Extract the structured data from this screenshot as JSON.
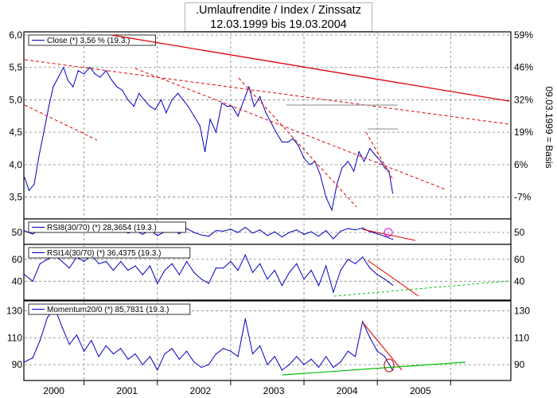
{
  "title": {
    "line1": ".Umlaufrendite / Index / Zinssatz",
    "line2": "12.03.1999 bis 19.03.2004"
  },
  "right_axis_label": "09.03.1999 = Basis",
  "colors": {
    "series": "#0000c0",
    "trend_red": "#e00000",
    "trend_green": "#00c000",
    "gridline": "#808080",
    "marker_magenta": "#e000e0"
  },
  "chart_data": [
    {
      "type": "line",
      "panel": "price",
      "legend": "Close (*) 3,56 % (19.3.)",
      "x_ticks": [
        "2000",
        "2001",
        "2002",
        "2003",
        "2004",
        "2005"
      ],
      "x_range": [
        1999.19,
        2005.8
      ],
      "yticks_left": [
        "6,0",
        "5,5",
        "5,0",
        "4,5",
        "4,0",
        "3,5"
      ],
      "yticks_left_values": [
        6.0,
        5.5,
        5.0,
        4.5,
        4.0,
        3.5
      ],
      "yticks_right": [
        "59%",
        "46%",
        "32%",
        "19%",
        "6%",
        "-7%"
      ],
      "ylim": [
        3.2,
        6.0
      ],
      "series": [
        {
          "x": [
            1999.19,
            1999.25,
            1999.32,
            1999.38,
            1999.45,
            1999.52,
            1999.58,
            1999.65,
            1999.72,
            1999.78,
            1999.85,
            1999.92,
            2000.0,
            2000.08,
            2000.15,
            2000.22,
            2000.3,
            2000.38,
            2000.45,
            2000.52,
            2000.6,
            2000.68,
            2000.75,
            2000.82,
            2000.9,
            2000.97,
            2001.05,
            2001.12,
            2001.2,
            2001.28,
            2001.35,
            2001.42,
            2001.5,
            2001.58,
            2001.65,
            2001.72,
            2001.8,
            2001.88,
            2001.95,
            2002.02,
            2002.1,
            2002.18,
            2002.25,
            2002.32,
            2002.4,
            2002.48,
            2002.55,
            2002.62,
            2002.7,
            2002.78,
            2002.85,
            2002.92,
            2003.0,
            2003.08,
            2003.15,
            2003.22,
            2003.3,
            2003.38,
            2003.45,
            2003.52,
            2003.6,
            2003.68,
            2003.75,
            2003.82,
            2003.9,
            2003.97,
            2004.05,
            2004.1,
            2004.16,
            2004.21
          ],
          "y": [
            3.8,
            3.6,
            3.7,
            4.1,
            4.5,
            4.9,
            5.2,
            5.35,
            5.5,
            5.3,
            5.2,
            5.45,
            5.4,
            5.5,
            5.4,
            5.35,
            5.45,
            5.3,
            5.2,
            5.15,
            5.0,
            4.9,
            5.1,
            5.0,
            4.9,
            4.85,
            5.0,
            4.8,
            5.0,
            5.1,
            5.0,
            4.9,
            4.75,
            4.6,
            4.2,
            4.7,
            4.5,
            4.95,
            4.9,
            4.9,
            4.75,
            5.0,
            5.2,
            4.9,
            5.05,
            4.8,
            4.65,
            4.5,
            4.35,
            4.35,
            4.4,
            4.3,
            4.1,
            4.0,
            4.05,
            3.85,
            3.5,
            3.3,
            3.7,
            3.95,
            4.05,
            3.9,
            4.2,
            4.05,
            4.25,
            4.15,
            4.05,
            3.95,
            3.9,
            3.56
          ]
        }
      ]
    },
    {
      "type": "line",
      "panel": "rsi8",
      "legend": "RSI8(30/70) (*) 28,3654 (19.3.)",
      "yticks_left": [
        "50"
      ],
      "yticks_right": [
        "50"
      ],
      "ylim": [
        20,
        80
      ],
      "series": [
        {
          "x": [
            1999.19,
            1999.3,
            1999.4,
            1999.5,
            1999.6,
            1999.7,
            1999.8,
            1999.9,
            2000.0,
            2000.1,
            2000.2,
            2000.3,
            2000.4,
            2000.5,
            2000.6,
            2000.7,
            2000.8,
            2000.9,
            2001.0,
            2001.1,
            2001.2,
            2001.3,
            2001.4,
            2001.5,
            2001.6,
            2001.7,
            2001.8,
            2001.9,
            2002.0,
            2002.1,
            2002.2,
            2002.3,
            2002.4,
            2002.5,
            2002.6,
            2002.7,
            2002.8,
            2002.9,
            2003.0,
            2003.1,
            2003.2,
            2003.3,
            2003.4,
            2003.5,
            2003.6,
            2003.7,
            2003.8,
            2003.9,
            2004.0,
            2004.1,
            2004.21
          ],
          "y": [
            55,
            45,
            62,
            58,
            68,
            60,
            52,
            64,
            58,
            66,
            55,
            60,
            50,
            62,
            48,
            56,
            44,
            58,
            40,
            52,
            60,
            46,
            62,
            50,
            42,
            38,
            56,
            54,
            60,
            50,
            66,
            48,
            58,
            40,
            52,
            36,
            50,
            58,
            44,
            52,
            38,
            56,
            30,
            54,
            62,
            58,
            64,
            52,
            46,
            38,
            28.37
          ]
        }
      ]
    },
    {
      "type": "line",
      "panel": "rsi14",
      "legend": "RSI14(30/70) (*) 36,4375 (19.3.)",
      "yticks_left": [
        "60",
        "40"
      ],
      "yticks_left_values": [
        60,
        40
      ],
      "yticks_right": [
        "60",
        "40"
      ],
      "ylim": [
        25,
        70
      ],
      "series": [
        {
          "x": [
            1999.19,
            1999.3,
            1999.4,
            1999.5,
            1999.6,
            1999.7,
            1999.8,
            1999.9,
            2000.0,
            2000.1,
            2000.2,
            2000.3,
            2000.4,
            2000.5,
            2000.6,
            2000.7,
            2000.8,
            2000.9,
            2001.0,
            2001.1,
            2001.2,
            2001.3,
            2001.4,
            2001.5,
            2001.6,
            2001.7,
            2001.8,
            2001.9,
            2002.0,
            2002.1,
            2002.2,
            2002.3,
            2002.4,
            2002.5,
            2002.6,
            2002.7,
            2002.8,
            2002.9,
            2003.0,
            2003.1,
            2003.2,
            2003.3,
            2003.4,
            2003.5,
            2003.6,
            2003.7,
            2003.8,
            2003.9,
            2004.0,
            2004.1,
            2004.21
          ],
          "y": [
            46,
            40,
            56,
            60,
            64,
            58,
            52,
            62,
            58,
            64,
            56,
            58,
            50,
            58,
            50,
            54,
            46,
            54,
            38,
            50,
            56,
            46,
            58,
            48,
            42,
            38,
            52,
            52,
            58,
            50,
            64,
            48,
            56,
            42,
            50,
            36,
            48,
            56,
            42,
            50,
            36,
            54,
            30,
            50,
            60,
            56,
            62,
            52,
            46,
            42,
            36.44
          ]
        }
      ]
    },
    {
      "type": "line",
      "panel": "momentum",
      "legend": "Momentum20/0 (*) 85,7831 (19.3.)",
      "yticks_left": [
        "130",
        "110",
        "90"
      ],
      "yticks_left_values": [
        130,
        110,
        90
      ],
      "yticks_right": [
        "130",
        "110",
        "90"
      ],
      "ylim": [
        80,
        135
      ],
      "series": [
        {
          "x": [
            1999.19,
            1999.3,
            1999.4,
            1999.5,
            1999.6,
            1999.7,
            1999.8,
            1999.9,
            2000.0,
            2000.1,
            2000.2,
            2000.3,
            2000.4,
            2000.5,
            2000.6,
            2000.7,
            2000.8,
            2000.9,
            2001.0,
            2001.1,
            2001.2,
            2001.3,
            2001.4,
            2001.5,
            2001.6,
            2001.7,
            2001.8,
            2001.9,
            2002.0,
            2002.1,
            2002.2,
            2002.3,
            2002.4,
            2002.5,
            2002.6,
            2002.7,
            2002.8,
            2002.9,
            2003.0,
            2003.1,
            2003.2,
            2003.3,
            2003.4,
            2003.5,
            2003.6,
            2003.7,
            2003.8,
            2003.9,
            2004.0,
            2004.1,
            2004.21
          ],
          "y": [
            92,
            95,
            108,
            125,
            132,
            118,
            105,
            112,
            100,
            108,
            96,
            104,
            98,
            102,
            94,
            98,
            90,
            96,
            86,
            98,
            102,
            94,
            100,
            92,
            88,
            90,
            98,
            102,
            100,
            96,
            124,
            98,
            104,
            90,
            96,
            86,
            90,
            96,
            90,
            94,
            88,
            96,
            88,
            92,
            100,
            96,
            122,
            110,
            100,
            96,
            85.78
          ]
        }
      ]
    }
  ]
}
